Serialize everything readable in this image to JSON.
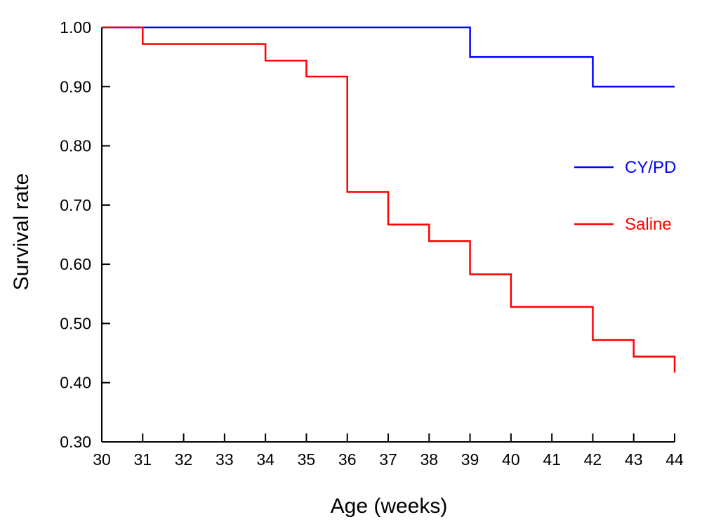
{
  "chart_data": {
    "type": "line",
    "step": true,
    "title": "",
    "xlabel": "Age (weeks)",
    "ylabel": "Survival rate",
    "xlim": [
      30,
      44
    ],
    "ylim": [
      0.3,
      1.0
    ],
    "xticks": [
      "30",
      "31",
      "32",
      "33",
      "34",
      "35",
      "36",
      "37",
      "38",
      "39",
      "40",
      "41",
      "42",
      "43",
      "44"
    ],
    "yticks": [
      "0.30",
      "0.40",
      "0.50",
      "0.60",
      "0.70",
      "0.80",
      "0.90",
      "1.00"
    ],
    "grid": false,
    "legend_position": "right",
    "series": [
      {
        "name": "CY/PD",
        "color": "#0000ff",
        "x": [
          30,
          39,
          42,
          44
        ],
        "y": [
          1.0,
          0.95,
          0.9,
          0.9
        ]
      },
      {
        "name": "Saline",
        "color": "#ff0000",
        "x": [
          30,
          31,
          34,
          35,
          36,
          37,
          38,
          39,
          40,
          42,
          43,
          44,
          44
        ],
        "y": [
          1.0,
          0.972,
          0.944,
          0.917,
          0.722,
          0.667,
          0.639,
          0.583,
          0.528,
          0.472,
          0.444,
          0.444,
          0.417
        ]
      }
    ]
  }
}
